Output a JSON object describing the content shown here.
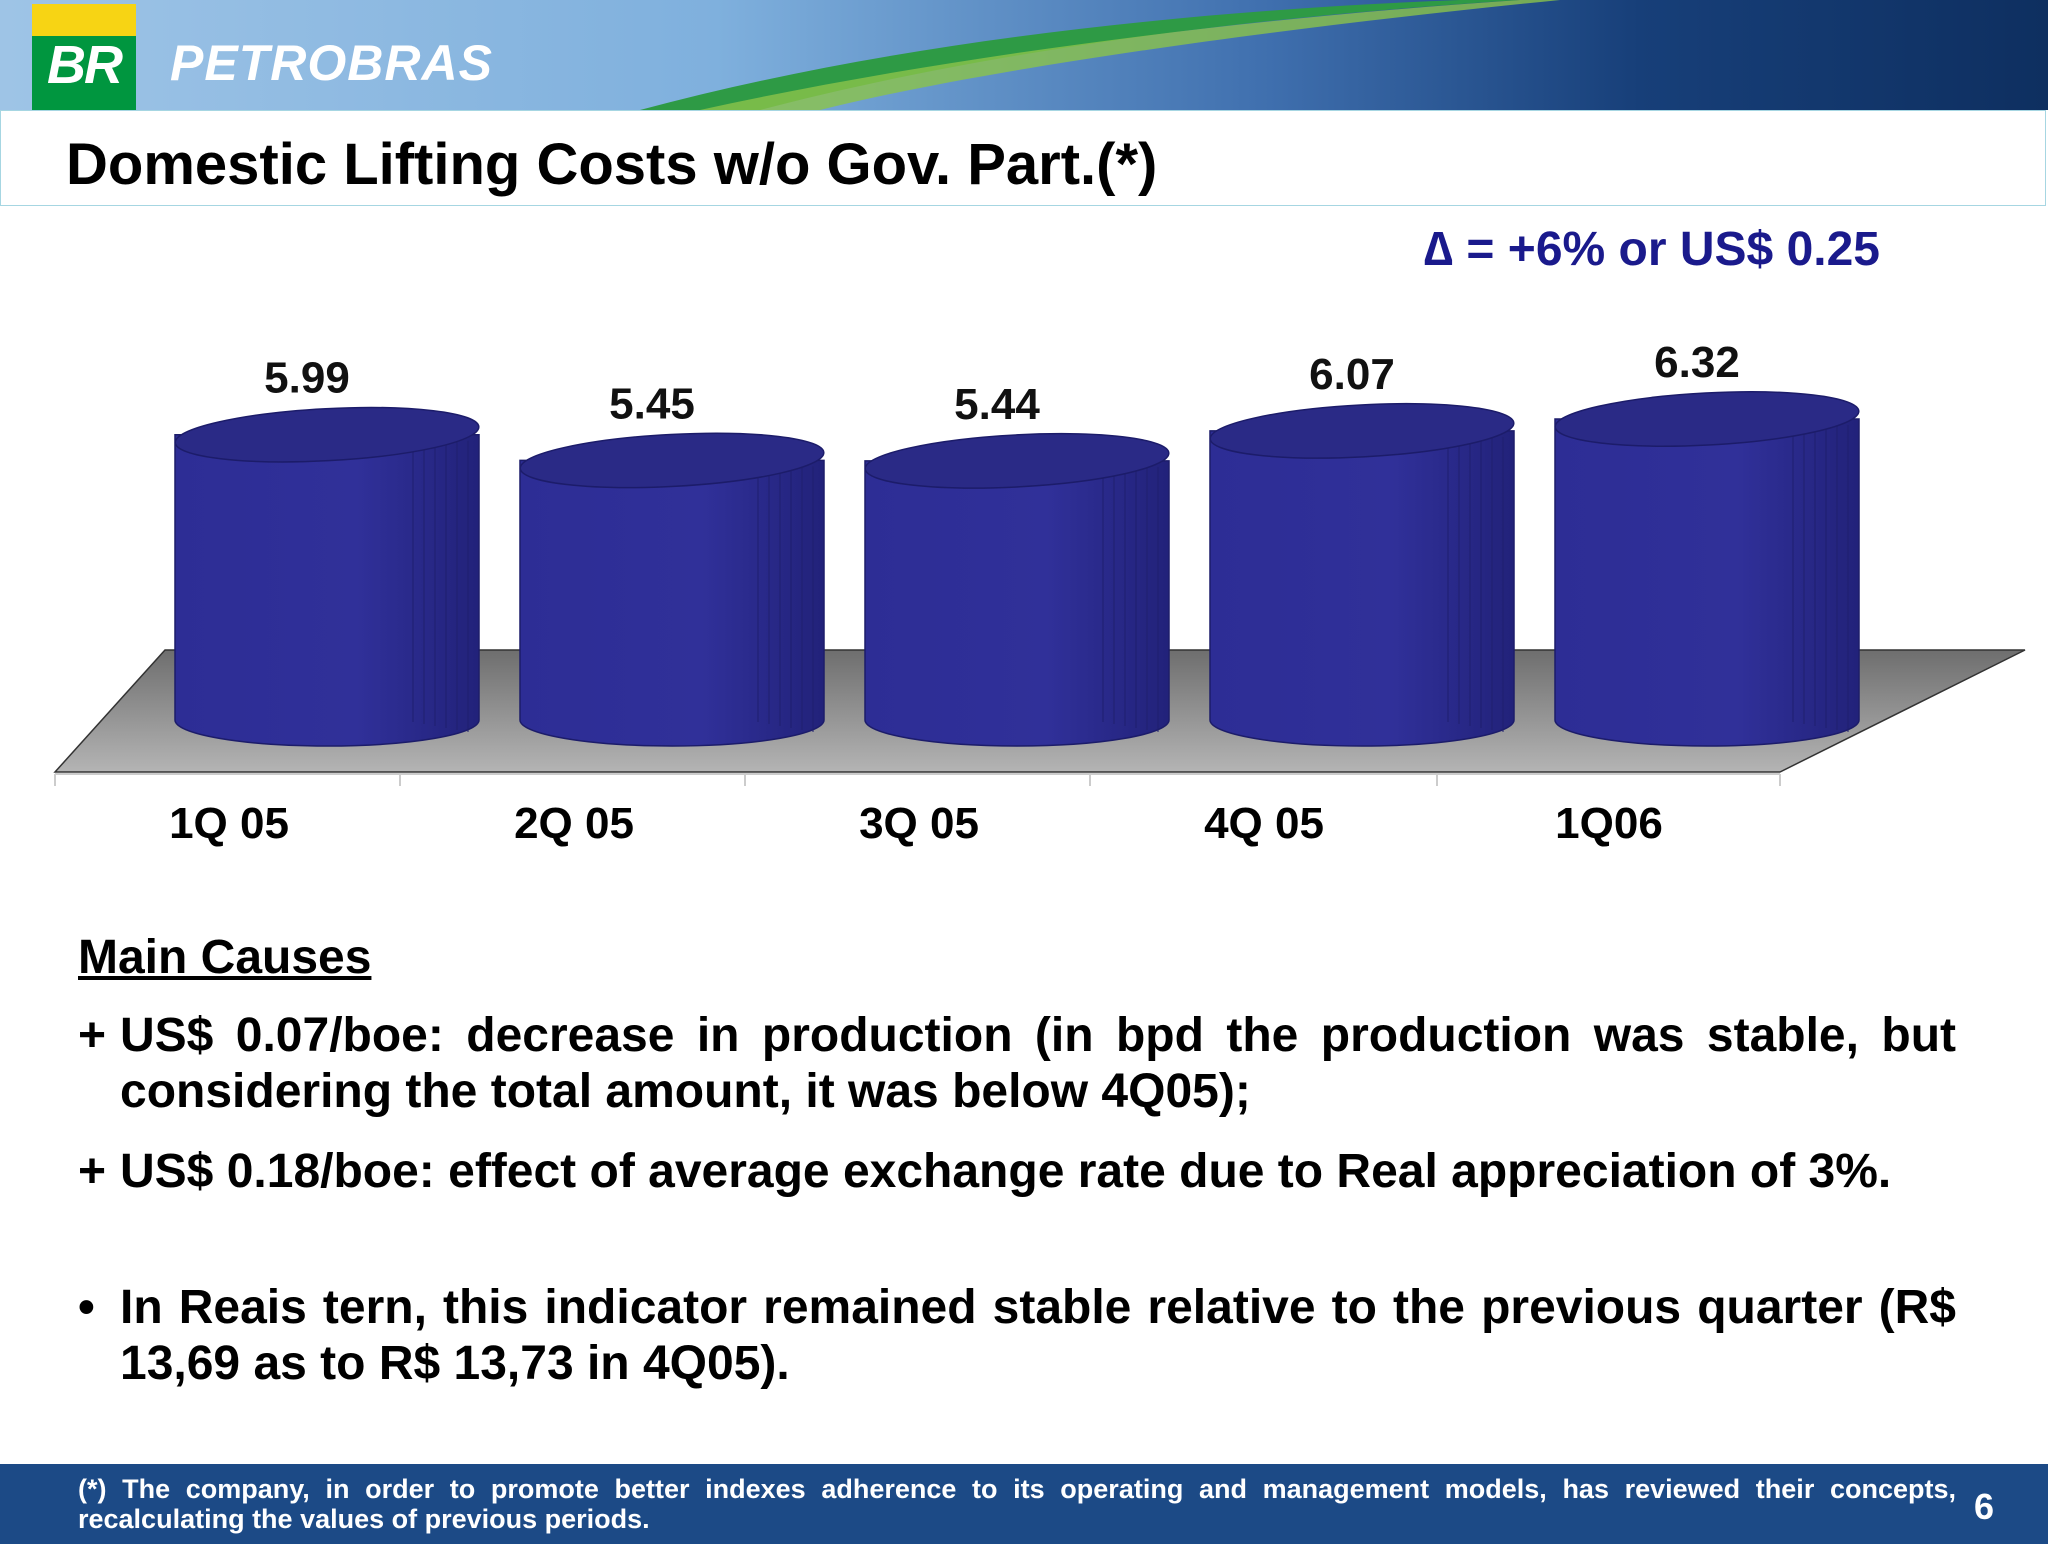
{
  "header": {
    "logo_text": "BR",
    "brand": "PETROBRAS"
  },
  "title": "Domestic Lifting Costs w/o Gov. Part.(*)",
  "delta_note": "∆ = +6% or US$ 0.25",
  "chart_data": {
    "type": "bar",
    "title": "",
    "xlabel": "",
    "ylabel": "",
    "categories": [
      "1Q 05",
      "2Q 05",
      "3Q 05",
      "4Q 05",
      "1Q06"
    ],
    "values": [
      5.99,
      5.45,
      5.44,
      6.07,
      6.32
    ],
    "value_labels": [
      "5.99",
      "5.45",
      "5.44",
      "6.07",
      "6.32"
    ],
    "bar_color": "#2c2c94",
    "grid": false,
    "legend": "none"
  },
  "causes": {
    "title": "Main Causes",
    "items": [
      {
        "marker": "+",
        "text": "US$ 0.07/boe: decrease in production (in bpd the production was stable, but considering the total amount, it was below 4Q05);"
      },
      {
        "marker": "+",
        "text": "US$ 0.18/boe: effect of average exchange rate due to Real appreciation of 3%."
      },
      {
        "marker": "•",
        "text": "In Reais tern, this indicator remained stable relative to the previous quarter (R$ 13,69 as to R$ 13,73 in 4Q05)."
      }
    ]
  },
  "footer": {
    "note": "(*) The company, in order to promote better indexes adherence to its operating and management models, has reviewed their concepts, recalculating the values of previous periods.",
    "page": "6"
  }
}
